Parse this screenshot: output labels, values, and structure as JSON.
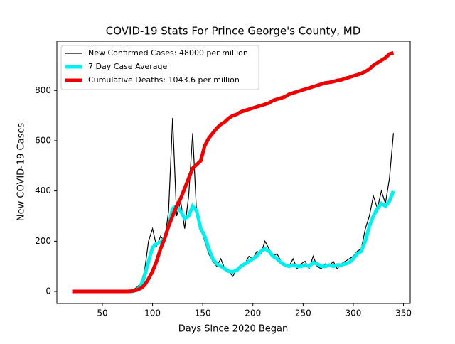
{
  "chart_data": {
    "type": "line",
    "title": "COVID-19 Stats For Prince George's County, MD",
    "xlabel": "Days Since 2020 Began",
    "ylabel": "New COVID-19 Cases",
    "x": [
      20,
      24,
      28,
      32,
      36,
      40,
      44,
      48,
      52,
      56,
      60,
      64,
      68,
      72,
      76,
      80,
      84,
      88,
      92,
      96,
      100,
      104,
      108,
      112,
      116,
      120,
      124,
      128,
      132,
      136,
      140,
      144,
      148,
      152,
      156,
      160,
      164,
      168,
      172,
      176,
      180,
      184,
      188,
      192,
      196,
      200,
      204,
      208,
      212,
      216,
      220,
      224,
      228,
      232,
      236,
      240,
      244,
      248,
      252,
      256,
      260,
      264,
      268,
      272,
      276,
      280,
      284,
      288,
      292,
      296,
      300,
      304,
      308,
      312,
      316,
      320,
      324,
      328,
      332,
      336,
      340
    ],
    "series": [
      {
        "name": "New Confirmed Cases: 48000 per million",
        "color": "#000000",
        "width": 1.2,
        "values": [
          0,
          0,
          0,
          0,
          0,
          0,
          0,
          0,
          0,
          0,
          0,
          0,
          0,
          0,
          0,
          5,
          15,
          30,
          80,
          200,
          250,
          180,
          220,
          200,
          320,
          690,
          300,
          360,
          250,
          380,
          630,
          300,
          250,
          200,
          150,
          120,
          100,
          130,
          90,
          80,
          60,
          90,
          100,
          110,
          140,
          130,
          160,
          150,
          200,
          170,
          140,
          150,
          120,
          110,
          100,
          130,
          90,
          110,
          120,
          90,
          140,
          100,
          90,
          110,
          100,
          120,
          90,
          110,
          120,
          130,
          140,
          160,
          170,
          250,
          300,
          380,
          330,
          400,
          350,
          450,
          630
        ]
      },
      {
        "name": "7 Day Case Average",
        "color": "#00f0f0",
        "width": 5,
        "values": [
          0,
          0,
          0,
          0,
          0,
          0,
          0,
          0,
          0,
          0,
          0,
          0,
          0,
          0,
          0,
          0,
          5,
          20,
          60,
          120,
          175,
          190,
          195,
          210,
          260,
          330,
          340,
          320,
          290,
          300,
          340,
          320,
          250,
          220,
          170,
          130,
          110,
          100,
          90,
          80,
          78,
          85,
          100,
          110,
          120,
          130,
          140,
          160,
          170,
          160,
          140,
          130,
          115,
          105,
          100,
          105,
          100,
          100,
          105,
          100,
          115,
          110,
          100,
          100,
          105,
          100,
          105,
          105,
          110,
          115,
          130,
          150,
          160,
          200,
          260,
          300,
          330,
          350,
          340,
          360,
          400
        ]
      },
      {
        "name": "Cumulative Deaths: 1043.6 per million",
        "color": "#ee0000",
        "width": 5,
        "values": [
          0,
          0,
          0,
          0,
          0,
          0,
          0,
          0,
          0,
          0,
          0,
          0,
          0,
          0,
          0,
          2,
          5,
          12,
          25,
          50,
          80,
          120,
          170,
          210,
          260,
          300,
          340,
          370,
          410,
          450,
          490,
          505,
          520,
          580,
          610,
          630,
          650,
          665,
          675,
          690,
          700,
          705,
          715,
          720,
          725,
          730,
          735,
          740,
          745,
          750,
          760,
          765,
          770,
          775,
          785,
          790,
          795,
          800,
          805,
          810,
          815,
          820,
          825,
          830,
          832,
          835,
          840,
          842,
          848,
          852,
          858,
          862,
          868,
          875,
          885,
          900,
          910,
          920,
          930,
          945,
          950
        ]
      }
    ],
    "xlim": [
      4.7,
      356.7
    ],
    "ylim": [
      -48,
      996
    ],
    "xticks": [
      50,
      100,
      150,
      200,
      250,
      300,
      350
    ],
    "yticks": [
      0,
      200,
      400,
      600,
      800
    ],
    "legend": "upper left"
  }
}
